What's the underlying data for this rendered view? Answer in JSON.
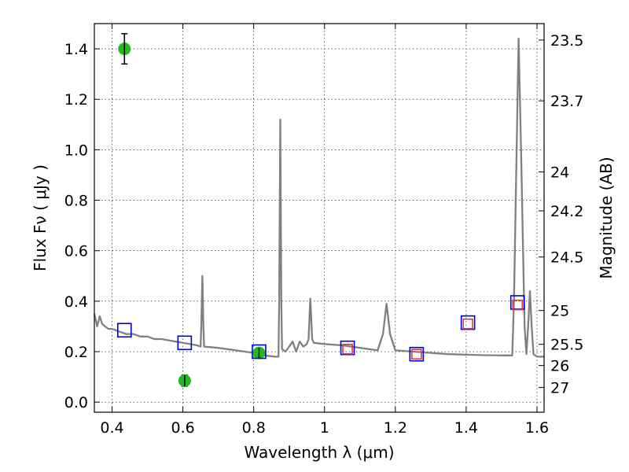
{
  "chart_data": {
    "type": "scatter",
    "title": "",
    "xlabel": "Wavelength  λ (μm)",
    "ylabel": "Flux  Fν  ( μJy )",
    "ylabel_right": "Magnitude (AB)",
    "xlim": [
      0.35,
      1.62
    ],
    "ylim": [
      -0.04,
      1.5
    ],
    "grid": true,
    "x_ticks": [
      {
        "value": 0.4,
        "label": "0.4"
      },
      {
        "value": 0.6,
        "label": "0.6"
      },
      {
        "value": 0.8,
        "label": "0.8"
      },
      {
        "value": 1.0,
        "label": "1"
      },
      {
        "value": 1.2,
        "label": "1.2"
      },
      {
        "value": 1.4,
        "label": "1.4"
      },
      {
        "value": 1.6,
        "label": "1.6"
      }
    ],
    "y_ticks": [
      {
        "value": 0.0,
        "label": "0.0"
      },
      {
        "value": 0.2,
        "label": "0.2"
      },
      {
        "value": 0.4,
        "label": "0.4"
      },
      {
        "value": 0.6,
        "label": "0.6"
      },
      {
        "value": 0.8,
        "label": "0.8"
      },
      {
        "value": 1.0,
        "label": "1.0"
      },
      {
        "value": 1.2,
        "label": "1.2"
      },
      {
        "value": 1.4,
        "label": "1.4"
      }
    ],
    "right_ticks": [
      {
        "flux": 1.435,
        "label": "23.5"
      },
      {
        "flux": 1.194,
        "label": "23.7"
      },
      {
        "flux": 0.912,
        "label": "24"
      },
      {
        "flux": 0.758,
        "label": "24.2"
      },
      {
        "flux": 0.575,
        "label": "24.5"
      },
      {
        "flux": 0.363,
        "label": "25"
      },
      {
        "flux": 0.229,
        "label": "25.5"
      },
      {
        "flux": 0.145,
        "label": "26"
      },
      {
        "flux": 0.058,
        "label": "27"
      }
    ],
    "series": [
      {
        "kind": "line",
        "color": "#808080",
        "x": [
          0.35,
          0.358,
          0.365,
          0.372,
          0.38,
          0.39,
          0.4,
          0.42,
          0.44,
          0.46,
          0.48,
          0.5,
          0.52,
          0.54,
          0.56,
          0.58,
          0.6,
          0.62,
          0.64,
          0.65,
          0.652,
          0.655,
          0.658,
          0.66,
          0.7,
          0.75,
          0.8,
          0.83,
          0.86,
          0.87,
          0.872,
          0.875,
          0.878,
          0.88,
          0.89,
          0.9,
          0.91,
          0.92,
          0.93,
          0.94,
          0.95,
          0.955,
          0.958,
          0.96,
          0.962,
          0.965,
          0.97,
          1.0,
          1.05,
          1.1,
          1.15,
          1.165,
          1.175,
          1.185,
          1.2,
          1.25,
          1.3,
          1.35,
          1.4,
          1.45,
          1.5,
          1.53,
          1.535,
          1.545,
          1.548,
          1.555,
          1.565,
          1.57,
          1.575,
          1.58,
          1.585,
          1.59,
          1.6,
          1.62
        ],
        "y": [
          0.35,
          0.3,
          0.34,
          0.31,
          0.3,
          0.29,
          0.29,
          0.28,
          0.27,
          0.27,
          0.26,
          0.26,
          0.25,
          0.25,
          0.245,
          0.24,
          0.235,
          0.23,
          0.225,
          0.22,
          0.3,
          0.5,
          0.3,
          0.22,
          0.215,
          0.205,
          0.195,
          0.185,
          0.18,
          0.18,
          0.4,
          1.12,
          0.4,
          0.21,
          0.2,
          0.22,
          0.24,
          0.2,
          0.24,
          0.22,
          0.23,
          0.25,
          0.35,
          0.41,
          0.35,
          0.25,
          0.235,
          0.23,
          0.225,
          0.215,
          0.205,
          0.27,
          0.39,
          0.27,
          0.205,
          0.2,
          0.195,
          0.19,
          0.188,
          0.186,
          0.185,
          0.185,
          0.4,
          1.2,
          1.44,
          1.0,
          0.3,
          0.19,
          0.3,
          0.44,
          0.3,
          0.19,
          0.18,
          0.18
        ]
      },
      {
        "kind": "points",
        "marker": "circle",
        "color": "#22bb22",
        "x": [
          0.435,
          0.605,
          0.815
        ],
        "y": [
          1.4,
          0.085,
          0.195
        ],
        "yerr": [
          0.06,
          0.022,
          0.02
        ]
      },
      {
        "kind": "points",
        "marker": "square-open",
        "color": "#0000dd",
        "x": [
          0.435,
          0.605,
          0.815,
          1.065,
          1.26,
          1.405,
          1.545
        ],
        "y": [
          0.285,
          0.235,
          0.2,
          0.215,
          0.19,
          0.315,
          0.395
        ]
      },
      {
        "kind": "points",
        "marker": "square-open",
        "color": "#ee3333",
        "x": [
          1.065,
          1.26,
          1.405,
          1.545
        ],
        "y": [
          0.21,
          0.19,
          0.31,
          0.385
        ]
      }
    ]
  }
}
